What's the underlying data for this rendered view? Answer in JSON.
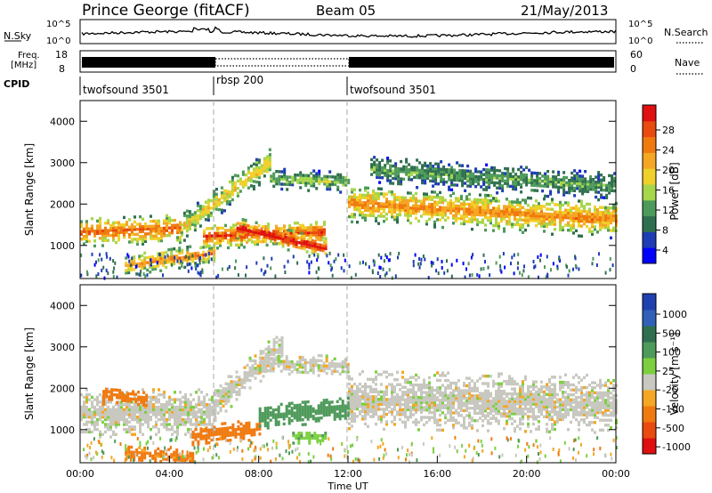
{
  "header": {
    "station": "Prince George (fitACF)",
    "beam": "Beam 05",
    "date": "21/May/2013"
  },
  "top_panels": {
    "nsky_label": "N.Sky",
    "nsky_ticks": [
      "10^5",
      "10^0"
    ],
    "nsearch_label": "N.Search",
    "freq_label_1": "Freq.",
    "freq_label_2": "[MHz]",
    "freq_ticks": [
      "18",
      "8"
    ],
    "nave_label": "Nave",
    "nave_ticks": [
      "60",
      "0"
    ],
    "cpid_label": "CPID",
    "cpid_segments": [
      {
        "label": "twofsound 3501",
        "start_hour": 0,
        "end_hour": 6
      },
      {
        "label": "rbsp 200",
        "start_hour": 6,
        "end_hour": 12
      },
      {
        "label": "twofsound 3501",
        "start_hour": 12,
        "end_hour": 24
      }
    ]
  },
  "colorbars": {
    "power": {
      "label": "Power [dB]",
      "ticks": [
        "28",
        "24",
        "20",
        "16",
        "12",
        "8",
        "4"
      ],
      "colors": [
        "#0000ff",
        "#1e3cb4",
        "#2f6f4f",
        "#4e9a5a",
        "#a6d64a",
        "#f0d02a",
        "#f5a623",
        "#f07a10",
        "#e84a10",
        "#e01010"
      ]
    },
    "velocity": {
      "label": "Velocity [m s⁻¹]",
      "ticks": [
        "1000",
        "500",
        "100",
        "25",
        "-25",
        "-100",
        "-500",
        "-1000"
      ],
      "colors": [
        "#2040b0",
        "#3060b8",
        "#2f6f4f",
        "#4e9a5a",
        "#7cd040",
        "#c8c8c0",
        "#f5a623",
        "#f07a10",
        "#e84a10",
        "#e01010"
      ]
    }
  },
  "chart_data": [
    {
      "type": "heatmap",
      "title": "Power",
      "ylabel": "Slant Range [km]",
      "ylim": [
        200,
        4500
      ],
      "yticks": [
        "4000",
        "3000",
        "2000",
        "1000"
      ],
      "xlim": [
        0,
        24
      ],
      "colorbar_label": "Power [dB]",
      "colorbar_range": [
        0,
        30
      ],
      "bands": [
        {
          "t0": 0,
          "t1": 4.5,
          "r_start": 1300,
          "r_end": 1400,
          "width": 350,
          "power": 22
        },
        {
          "t0": 4.5,
          "t1": 8.5,
          "r_start": 1400,
          "r_end": 3000,
          "width": 350,
          "power": 16
        },
        {
          "t0": 5.5,
          "t1": 11,
          "r_start": 1200,
          "r_end": 1300,
          "width": 300,
          "power": 24
        },
        {
          "t0": 7,
          "t1": 11,
          "r_start": 1400,
          "r_end": 900,
          "width": 250,
          "power": 27
        },
        {
          "t0": 8.5,
          "t1": 12,
          "r_start": 2600,
          "r_end": 2500,
          "width": 250,
          "power": 12
        },
        {
          "t0": 12,
          "t1": 24,
          "r_start": 2000,
          "r_end": 1600,
          "width": 450,
          "power": 20
        },
        {
          "t0": 13,
          "t1": 24,
          "r_start": 2800,
          "r_end": 2400,
          "width": 350,
          "power": 10
        },
        {
          "t0": 2,
          "t1": 6,
          "r_start": 500,
          "r_end": 800,
          "width": 250,
          "power": 20
        }
      ]
    },
    {
      "type": "heatmap",
      "title": "Velocity",
      "ylabel": "Slant Range [km]",
      "xlabel": "Time UT",
      "ylim": [
        200,
        4500
      ],
      "yticks": [
        "4000",
        "3000",
        "2000",
        "1000"
      ],
      "xlim": [
        0,
        24
      ],
      "xticks": [
        "00:00",
        "04:00",
        "08:00",
        "12:00",
        "16:00",
        "20:00",
        "00:00"
      ],
      "colorbar_label": "Velocity [m s⁻¹]",
      "colorbar_range": [
        -1000,
        1000
      ],
      "bands": [
        {
          "t0": 0,
          "t1": 6,
          "r_start": 1400,
          "r_end": 1400,
          "width": 600,
          "velocity": 0
        },
        {
          "t0": 6,
          "t1": 9,
          "r_start": 1600,
          "r_end": 3000,
          "width": 400,
          "velocity": 0
        },
        {
          "t0": 12,
          "t1": 24,
          "r_start": 1700,
          "r_end": 1600,
          "width": 700,
          "velocity": 0
        },
        {
          "t0": 5,
          "t1": 8,
          "r_start": 800,
          "r_end": 1000,
          "width": 250,
          "velocity": -150
        },
        {
          "t0": 8,
          "t1": 12,
          "r_start": 1300,
          "r_end": 1500,
          "width": 300,
          "velocity": 200
        },
        {
          "t0": 9.5,
          "t1": 11,
          "r_start": 800,
          "r_end": 800,
          "width": 150,
          "velocity": 80
        },
        {
          "t0": 1,
          "t1": 3,
          "r_start": 1800,
          "r_end": 1700,
          "width": 200,
          "velocity": -150
        },
        {
          "t0": 2,
          "t1": 5,
          "r_start": 400,
          "r_end": 300,
          "width": 200,
          "velocity": -120
        },
        {
          "t0": 8,
          "t1": 12,
          "r_start": 2600,
          "r_end": 2500,
          "width": 250,
          "velocity": 0
        }
      ]
    }
  ]
}
